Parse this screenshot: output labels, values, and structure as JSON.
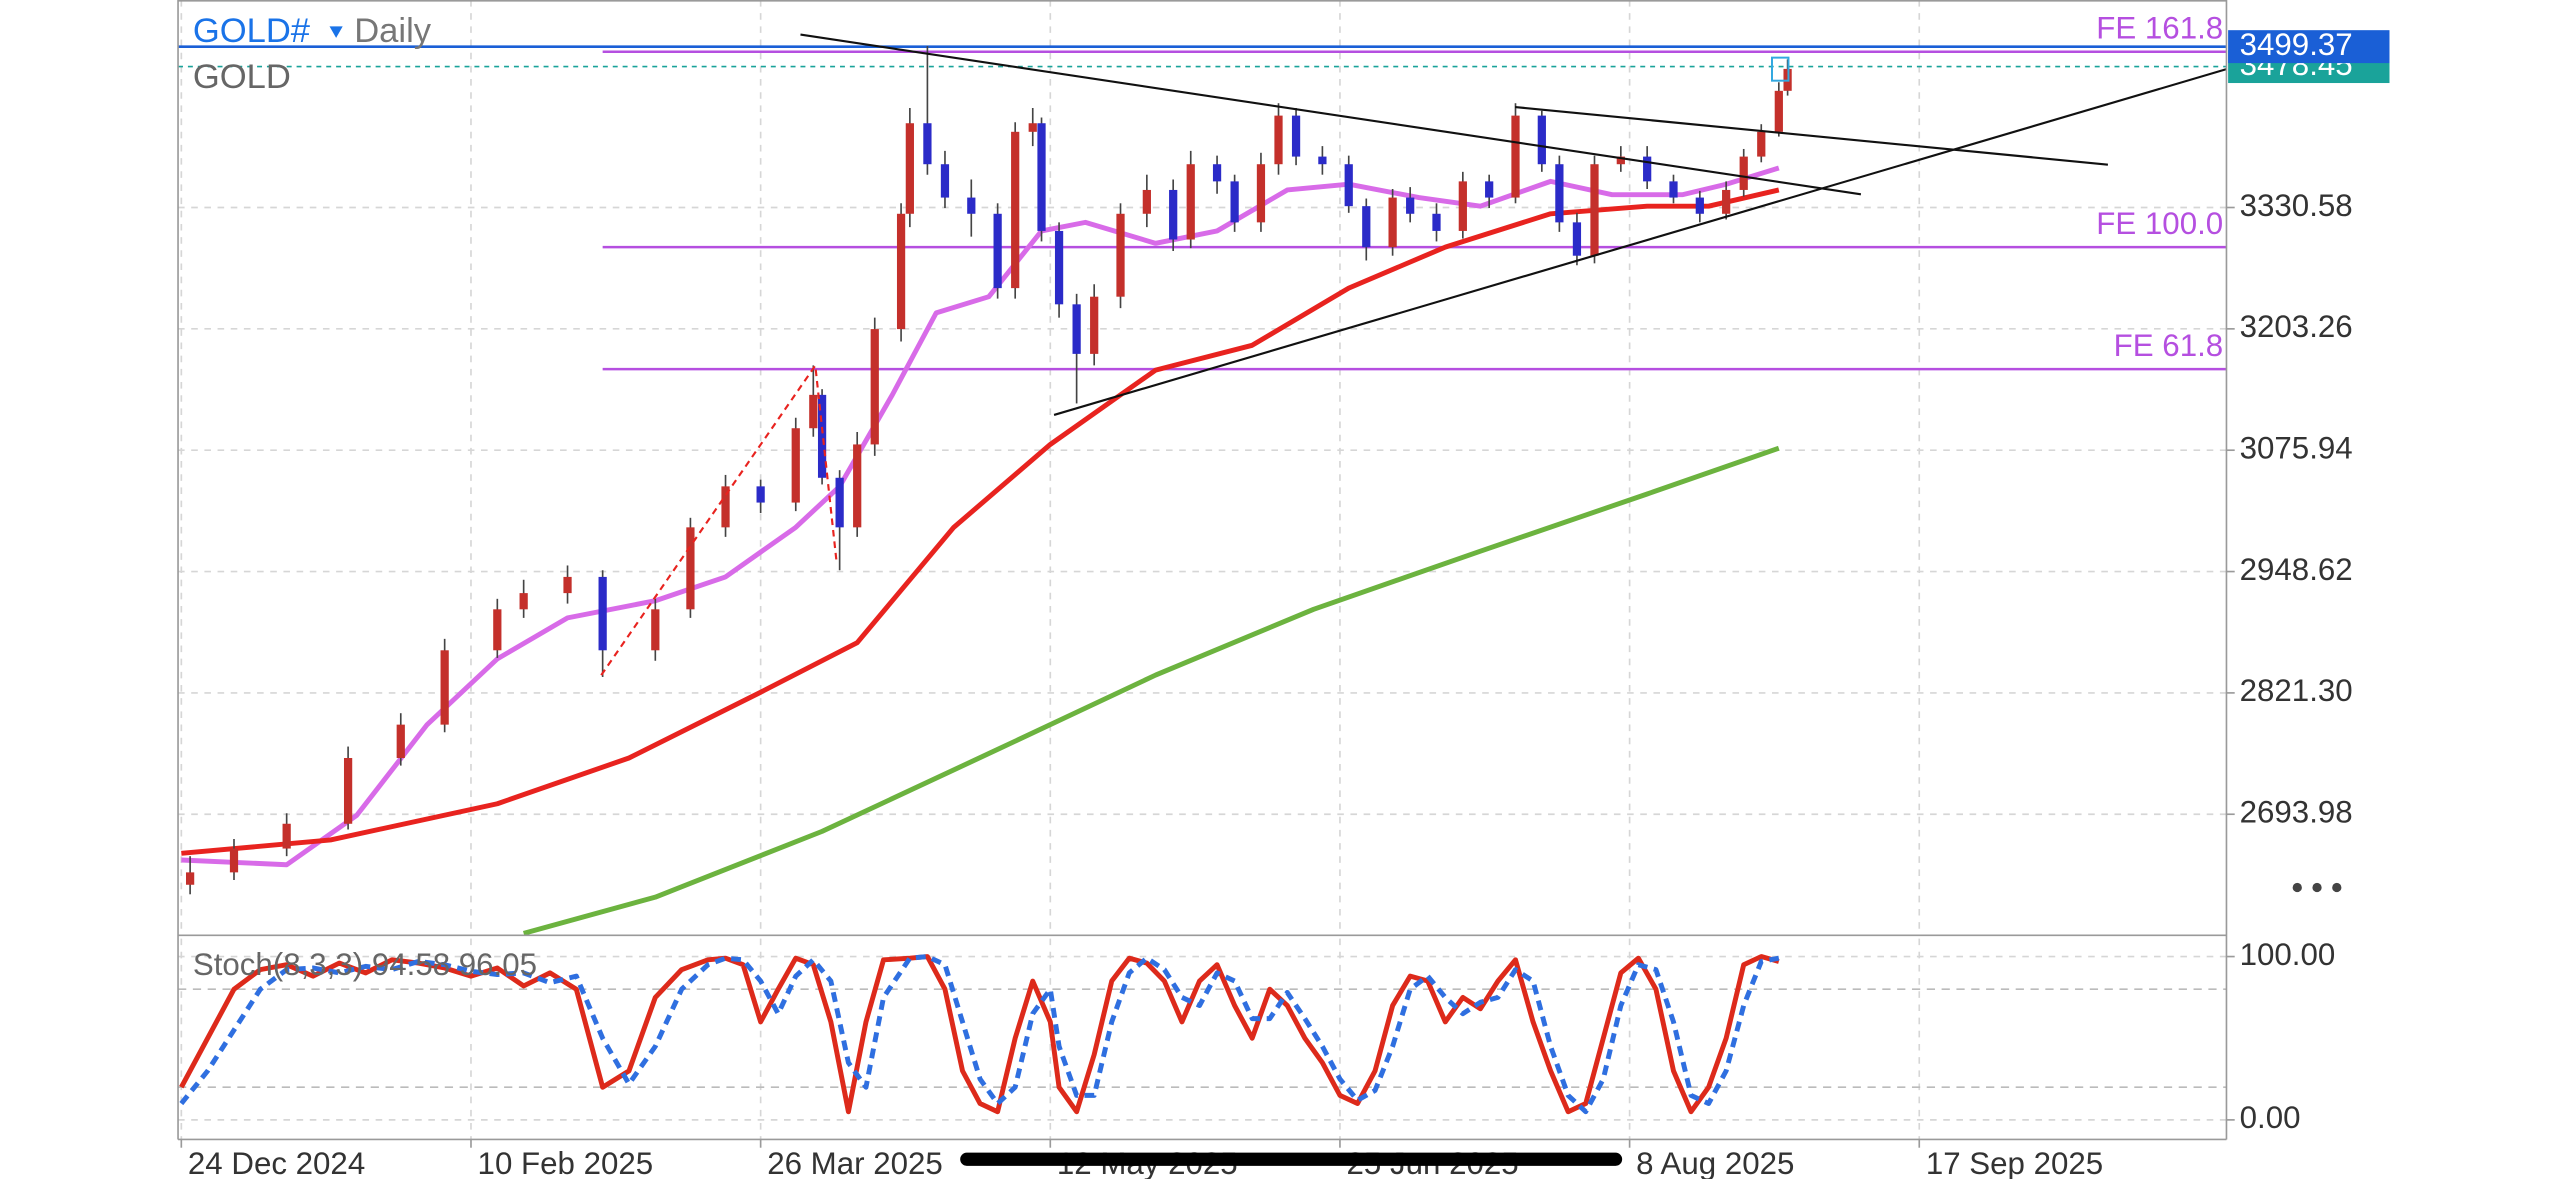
{
  "chart_data": [
    {
      "type": "candlestick",
      "title": "GOLD#",
      "interval": "Daily",
      "symbol": "GOLD",
      "up_color": "#c4302b",
      "down_color": "#2b2bc8",
      "x": [
        1,
        6,
        12,
        19,
        25,
        30,
        36,
        39,
        44,
        48,
        54,
        58,
        62,
        66,
        70,
        72,
        73,
        75,
        77,
        79,
        82,
        83,
        85,
        87,
        90,
        93,
        95,
        97,
        98,
        100,
        102,
        104,
        107,
        110,
        113,
        115,
        118,
        120,
        123,
        125,
        127,
        130,
        133,
        135,
        138,
        140,
        143,
        146,
        149,
        152,
        155,
        157,
        159,
        161,
        164,
        167,
        170,
        173,
        176,
        178,
        180,
        182,
        183
      ],
      "open": [
        2620,
        2633,
        2658,
        2684,
        2753,
        2788,
        2866,
        2909,
        2926,
        2943,
        2866,
        2909,
        2995,
        3038,
        3021,
        3099,
        3134,
        3047,
        2995,
        3082,
        3203,
        3324,
        3419,
        3376,
        3341,
        3324,
        3246,
        3410,
        3419,
        3306,
        3229,
        3177,
        3237,
        3324,
        3349,
        3297,
        3376,
        3358,
        3315,
        3376,
        3427,
        3384,
        3376,
        3332,
        3289,
        3341,
        3324,
        3306,
        3358,
        3341,
        3427,
        3376,
        3315,
        3280,
        3376,
        3384,
        3358,
        3341,
        3324,
        3349,
        3384,
        3410,
        3453
      ],
      "high": [
        2650,
        2668,
        2695,
        2765,
        2800,
        2878,
        2920,
        2940,
        2955,
        2950,
        2920,
        3005,
        3050,
        3045,
        3110,
        3165,
        3140,
        3055,
        3095,
        3215,
        3335,
        3435,
        3500,
        3390,
        3360,
        3335,
        3420,
        3435,
        3425,
        3315,
        3240,
        3250,
        3335,
        3365,
        3360,
        3390,
        3385,
        3365,
        3388,
        3440,
        3435,
        3395,
        3385,
        3340,
        3350,
        3352,
        3335,
        3368,
        3365,
        3440,
        3432,
        3385,
        3325,
        3385,
        3395,
        3395,
        3365,
        3348,
        3358,
        3392,
        3418,
        3462,
        3486
      ],
      "low": [
        2610,
        2625,
        2650,
        2678,
        2745,
        2780,
        2858,
        2900,
        2915,
        2838,
        2855,
        2900,
        2985,
        3010,
        3012,
        3090,
        3040,
        2950,
        2985,
        3070,
        3190,
        3310,
        3365,
        3330,
        3300,
        3235,
        3235,
        3395,
        3295,
        3215,
        3125,
        3165,
        3225,
        3310,
        3285,
        3288,
        3345,
        3305,
        3305,
        3365,
        3375,
        3365,
        3325,
        3275,
        3280,
        3315,
        3295,
        3298,
        3330,
        3335,
        3368,
        3305,
        3270,
        3272,
        3368,
        3350,
        3335,
        3315,
        3318,
        3342,
        3378,
        3405,
        3448
      ],
      "close": [
        2633,
        2658,
        2684,
        2753,
        2788,
        2866,
        2909,
        2926,
        2943,
        2866,
        2909,
        2995,
        3038,
        3021,
        3099,
        3134,
        3047,
        2995,
        3082,
        3203,
        3324,
        3419,
        3376,
        3341,
        3324,
        3246,
        3410,
        3419,
        3306,
        3229,
        3177,
        3237,
        3324,
        3349,
        3297,
        3376,
        3358,
        3315,
        3376,
        3427,
        3384,
        3376,
        3332,
        3289,
        3341,
        3324,
        3306,
        3358,
        3341,
        3427,
        3376,
        3315,
        3280,
        3376,
        3384,
        3358,
        3341,
        3324,
        3349,
        3384,
        3410,
        3453,
        3476
      ],
      "lines": [
        {
          "color": "#d86be8",
          "x": [
            0,
            12,
            20,
            28,
            36,
            44,
            54,
            62,
            70,
            75,
            81,
            86,
            92,
            98,
            103,
            111,
            118,
            126,
            133,
            141,
            148,
            156,
            163,
            171,
            176,
            182
          ],
          "values": [
            2646,
            2641,
            2693,
            2788,
            2857,
            2900,
            2918,
            2943,
            2995,
            3038,
            3134,
            3220,
            3237,
            3306,
            3315,
            3293,
            3306,
            3349,
            3355,
            3341,
            3332,
            3358,
            3344,
            3344,
            3355,
            3372
          ]
        },
        {
          "color": "#e8231f",
          "x": [
            0,
            17,
            36,
            51,
            66,
            77,
            88,
            99,
            111,
            122,
            133,
            144,
            156,
            167,
            174,
            182
          ],
          "values": [
            2653,
            2667,
            2705,
            2753,
            2822,
            2874,
            2995,
            3082,
            3160,
            3186,
            3246,
            3289,
            3324,
            3332,
            3332,
            3349
          ]
        },
        {
          "color": "#6cb33f",
          "x": [
            39,
            54,
            73,
            93,
            111,
            129,
            148,
            167,
            182
          ],
          "values": [
            2569,
            2607,
            2676,
            2762,
            2840,
            2909,
            2970,
            3030,
            3078
          ]
        }
      ],
      "levels": [
        {
          "label": "FE 161.8",
          "value": 3494,
          "start": 48,
          "color": "#b54fe0"
        },
        {
          "label": "FE 100.0",
          "value": 3289,
          "start": 48,
          "color": "#b54fe0"
        },
        {
          "label": "FE 61.8",
          "value": 3161,
          "start": 48,
          "color": "#b54fe0"
        }
      ],
      "price_lines": [
        {
          "value": 3478.45,
          "color": "#1aa39a"
        },
        {
          "value": 3499.37,
          "color": "#1a5fd6"
        }
      ],
      "xlim": [
        0,
        233
      ],
      "xticks": [
        {
          "value": 0,
          "label": "24 Dec 2024"
        },
        {
          "value": 33,
          "label": "10 Feb 2025"
        },
        {
          "value": 66,
          "label": "26 Mar 2025"
        },
        {
          "value": 99,
          "label": "12 May 2025"
        },
        {
          "value": 132,
          "label": "25 Jun 2025"
        },
        {
          "value": 165,
          "label": "8 Aug 2025"
        },
        {
          "value": 198,
          "label": "17 Sep 2025"
        }
      ],
      "ylim": [
        2568.7,
        3548.3
      ],
      "yticks": [
        3330.58,
        3203.26,
        3075.94,
        2948.62,
        {
          "value": 2821.3,
          "label": "2821.30"
        },
        2693.98
      ],
      "grid": true
    },
    {
      "type": "line",
      "title": "Stoch(8,3,3) 94.58 96.05",
      "x": [
        0,
        3,
        6,
        9,
        12,
        15,
        18,
        21,
        24,
        27,
        30,
        33,
        36,
        39,
        42,
        45,
        48,
        51,
        54,
        57,
        60,
        62,
        64,
        66,
        68,
        70,
        72,
        74,
        76,
        78,
        80,
        83,
        85,
        87,
        89,
        91,
        93,
        95,
        97,
        99,
        100,
        102,
        104,
        106,
        108,
        110,
        112,
        114,
        116,
        118,
        120,
        122,
        124,
        126,
        128,
        130,
        132,
        134,
        136,
        138,
        140,
        142,
        144,
        146,
        148,
        150,
        152,
        154,
        156,
        158,
        160,
        162,
        164,
        166,
        168,
        170,
        172,
        174,
        176,
        178,
        180,
        182
      ],
      "series": [
        {
          "color": "#dd2a1b",
          "values": [
            20,
            50,
            80,
            92,
            95,
            88,
            96,
            90,
            98,
            96,
            93,
            88,
            93,
            82,
            90,
            80,
            20,
            30,
            75,
            92,
            98,
            99,
            95,
            60,
            80,
            99,
            95,
            60,
            5,
            60,
            98,
            99,
            100,
            80,
            30,
            10,
            5,
            50,
            85,
            60,
            20,
            5,
            40,
            85,
            99,
            96,
            85,
            60,
            85,
            95,
            70,
            50,
            80,
            70,
            50,
            35,
            15,
            10,
            30,
            70,
            88,
            85,
            60,
            75,
            68,
            85,
            98,
            60,
            30,
            5,
            10,
            50,
            90,
            99,
            80,
            30,
            5,
            20,
            50,
            95,
            100,
            97
          ]
        },
        {
          "color": "#2f6fe0",
          "dashed": true,
          "values": [
            10,
            30,
            55,
            80,
            92,
            93,
            90,
            94,
            92,
            97,
            95,
            91,
            89,
            90,
            84,
            88,
            50,
            22,
            45,
            80,
            95,
            99,
            98,
            85,
            65,
            88,
            98,
            85,
            35,
            20,
            75,
            99,
            100,
            95,
            60,
            25,
            10,
            20,
            65,
            80,
            45,
            15,
            15,
            60,
            90,
            99,
            92,
            75,
            70,
            90,
            85,
            62,
            62,
            78,
            62,
            45,
            25,
            12,
            18,
            45,
            80,
            88,
            75,
            65,
            72,
            75,
            92,
            85,
            45,
            15,
            5,
            25,
            70,
            95,
            92,
            60,
            15,
            10,
            30,
            70,
            97,
            99
          ]
        }
      ],
      "xlim": [
        0,
        233
      ],
      "ylim": [
        -12,
        111
      ],
      "yticks": [
        {
          "value": 100,
          "label": "100.00"
        },
        {
          "value": 0,
          "label": "0.00"
        }
      ],
      "levels": [
        80,
        20
      ]
    }
  ]
}
